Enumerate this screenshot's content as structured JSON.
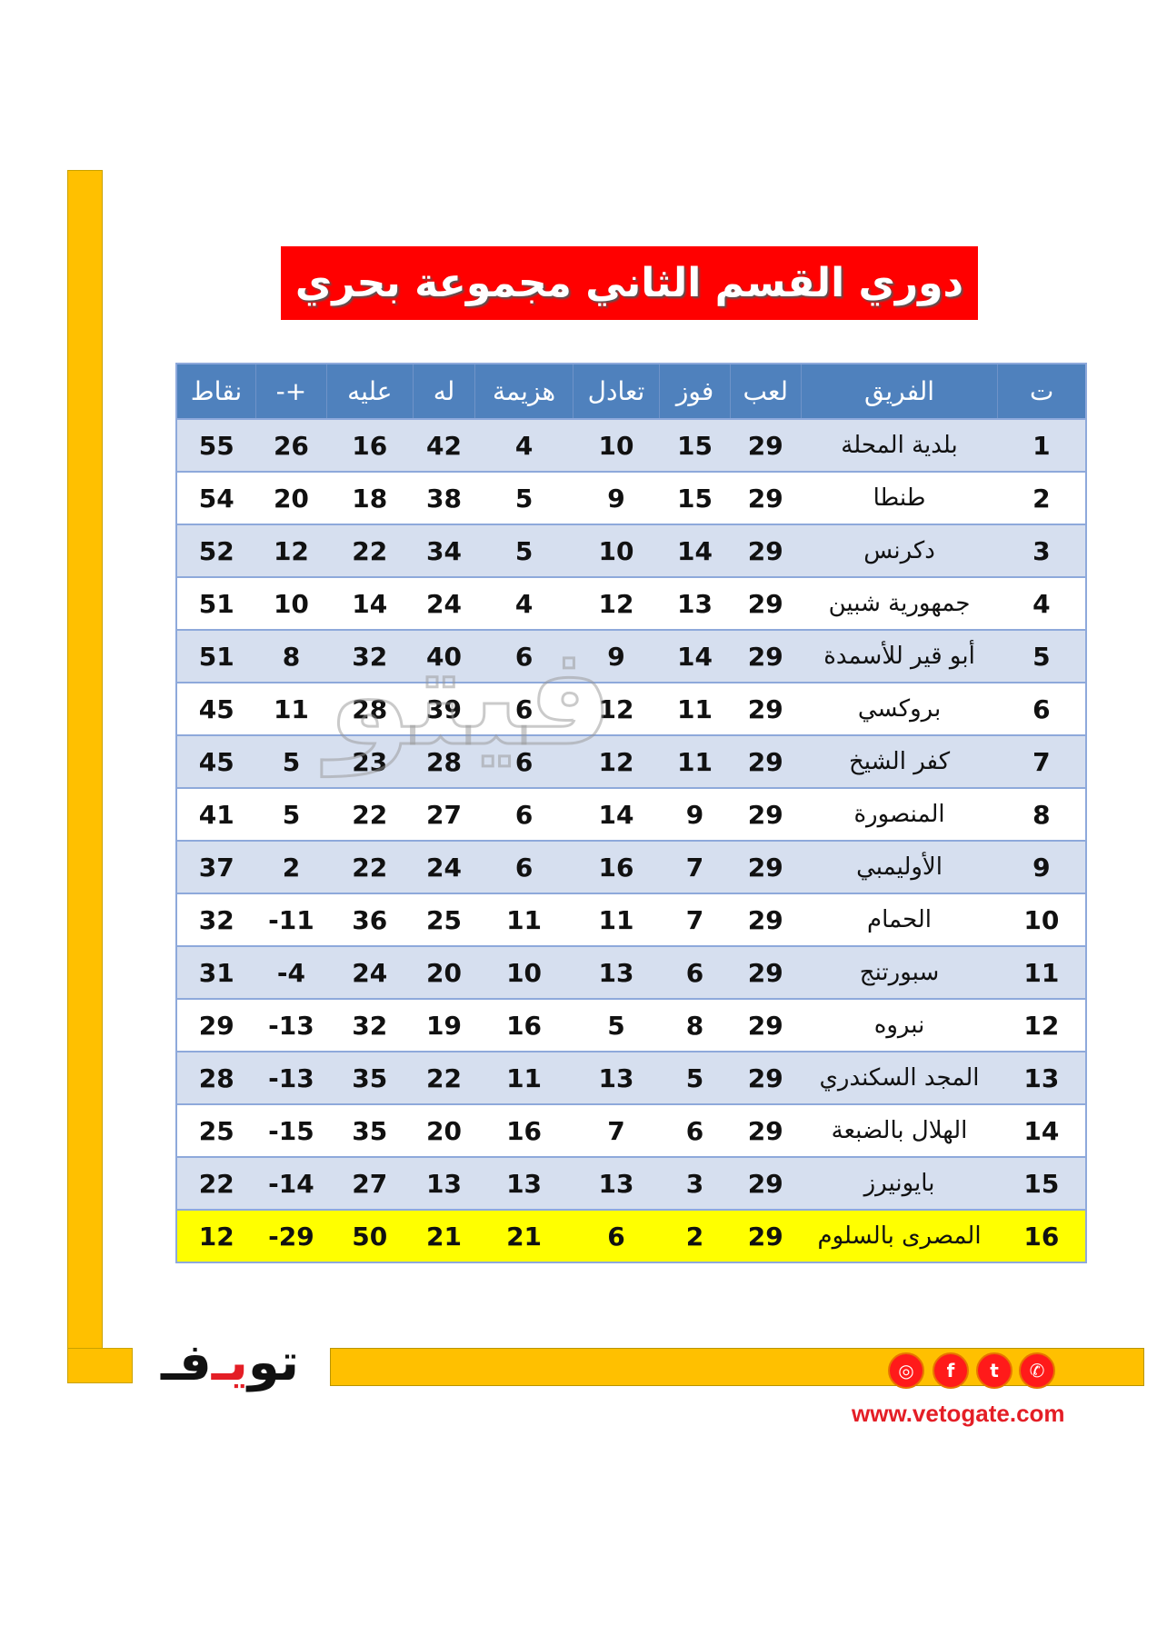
{
  "title": "دوري القسم الثاني مجموعة بحري",
  "table": {
    "headers": [
      "ت",
      "الفريق",
      "لعب",
      "فوز",
      "تعادل",
      "هزيمة",
      "له",
      "عليه",
      "+-",
      "نقاط"
    ],
    "rows": [
      [
        "1",
        "بلدية المحلة",
        "29",
        "15",
        "10",
        "4",
        "42",
        "16",
        "26",
        "55"
      ],
      [
        "2",
        "طنطا",
        "29",
        "15",
        "9",
        "5",
        "38",
        "18",
        "20",
        "54"
      ],
      [
        "3",
        "دكرنس",
        "29",
        "14",
        "10",
        "5",
        "34",
        "22",
        "12",
        "52"
      ],
      [
        "4",
        "جمهورية شبين",
        "29",
        "13",
        "12",
        "4",
        "24",
        "14",
        "10",
        "51"
      ],
      [
        "5",
        "أبو قير للأسمدة",
        "29",
        "14",
        "9",
        "6",
        "40",
        "32",
        "8",
        "51"
      ],
      [
        "6",
        "بروكسي",
        "29",
        "11",
        "12",
        "6",
        "39",
        "28",
        "11",
        "45"
      ],
      [
        "7",
        "كفر الشيخ",
        "29",
        "11",
        "12",
        "6",
        "28",
        "23",
        "5",
        "45"
      ],
      [
        "8",
        "المنصورة",
        "29",
        "9",
        "14",
        "6",
        "27",
        "22",
        "5",
        "41"
      ],
      [
        "9",
        "الأوليمبي",
        "29",
        "7",
        "16",
        "6",
        "24",
        "22",
        "2",
        "37"
      ],
      [
        "10",
        "الحمام",
        "29",
        "7",
        "11",
        "11",
        "25",
        "36",
        "-11",
        "32"
      ],
      [
        "11",
        "سبورتنج",
        "29",
        "6",
        "13",
        "10",
        "20",
        "24",
        "-4",
        "31"
      ],
      [
        "12",
        "نبروه",
        "29",
        "8",
        "5",
        "16",
        "19",
        "32",
        "-13",
        "29"
      ],
      [
        "13",
        "المجد السكندري",
        "29",
        "5",
        "13",
        "11",
        "22",
        "35",
        "-13",
        "28"
      ],
      [
        "14",
        "الهلال بالضبعة",
        "29",
        "6",
        "7",
        "16",
        "20",
        "35",
        "-15",
        "25"
      ],
      [
        "15",
        "بايونيرز",
        "29",
        "3",
        "13",
        "13",
        "13",
        "27",
        "-14",
        "22"
      ],
      [
        "16",
        "المصرى بالسلوم",
        "29",
        "2",
        "6",
        "21",
        "21",
        "50",
        "-29",
        "12"
      ]
    ],
    "highlighted_row": 16,
    "colors": {
      "header": "#4F81BD",
      "band": "#D6DFEF",
      "highlight": "#FFFF00",
      "title_bg": "#FF0000",
      "accent_bar": "#FFC000"
    }
  },
  "logo": {
    "text_main": "فيتو"
  },
  "footer": {
    "social_icons": [
      "instagram-icon",
      "facebook-icon",
      "twitter-icon",
      "whatsapp-icon"
    ],
    "url": "www.vetogate.com"
  }
}
